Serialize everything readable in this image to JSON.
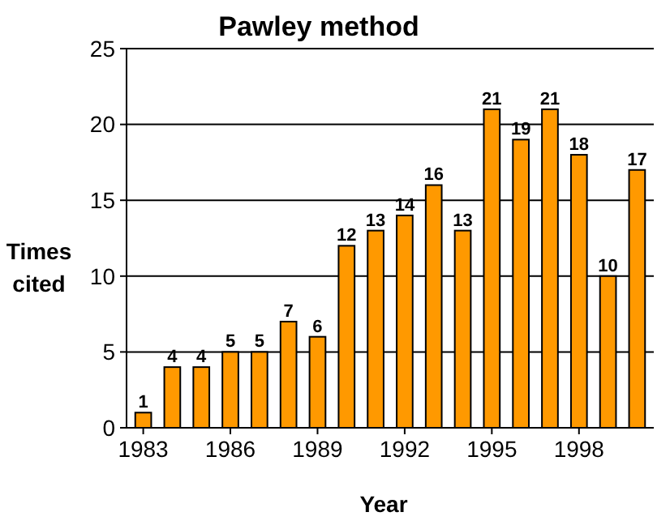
{
  "chart_data": {
    "type": "bar",
    "title": "Pawley method",
    "xlabel": "Year",
    "ylabel": "Times cited",
    "categories": [
      "1983",
      null,
      null,
      "1986",
      null,
      null,
      "1989",
      null,
      null,
      "1992",
      null,
      null,
      "1995",
      null,
      null,
      "1998",
      null,
      null
    ],
    "values": [
      1,
      4,
      4,
      5,
      5,
      7,
      6,
      12,
      13,
      14,
      16,
      13,
      21,
      19,
      21,
      18,
      10,
      17
    ],
    "color": "#ff9900",
    "ylim": [
      0,
      25
    ],
    "yticks": [
      0,
      5,
      10,
      15,
      20,
      25
    ],
    "grid": "y",
    "data_labels": true
  }
}
